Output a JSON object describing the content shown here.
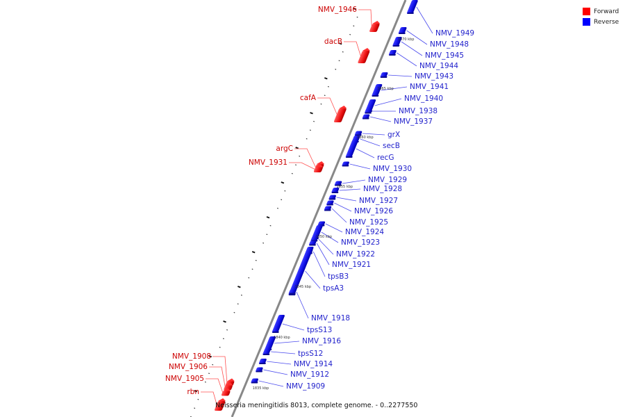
{
  "legend": {
    "items": [
      {
        "label": "Forward",
        "color": "#ff0000"
      },
      {
        "label": "Reverse",
        "color": "#0000ff"
      }
    ]
  },
  "caption": "Neisseria meningitidis 8013, complete genome. - 0..2277550",
  "colors": {
    "forward": "#ee1111",
    "reverse": "#1a1aee",
    "forward_label": "#cc0000",
    "reverse_label": "#2222cc",
    "backbone": "#888888",
    "ticks": "#111111"
  },
  "kbp_marks": [
    "1870 kbp",
    "1865 kbp",
    "1860 kbp",
    "1855 kbp",
    "1850 kbp",
    "1845 kbp",
    "1840 kbp",
    "1835 kbp"
  ],
  "forward_genes": [
    "NMV_1946",
    "dacB",
    "cafA",
    "argC",
    "NMV_1931",
    "NMV_1908",
    "NMV_1906",
    "NMV_1905",
    "rbn"
  ],
  "reverse_genes": [
    "NMV_1949",
    "NMV_1948",
    "NMV_1945",
    "NMV_1944",
    "NMV_1943",
    "NMV_1941",
    "NMV_1940",
    "NMV_1938",
    "NMV_1937",
    "grX",
    "secB",
    "recG",
    "NMV_1930",
    "NMV_1929",
    "NMV_1928",
    "NMV_1927",
    "NMV_1926",
    "NMV_1925",
    "NMV_1924",
    "NMV_1923",
    "NMV_1922",
    "NMV_1921",
    "tpsB3",
    "tpsA3",
    "NMV_1918",
    "tpsS13",
    "NMV_1916",
    "tpsS12",
    "NMV_1914",
    "NMV_1912",
    "NMV_1909"
  ]
}
